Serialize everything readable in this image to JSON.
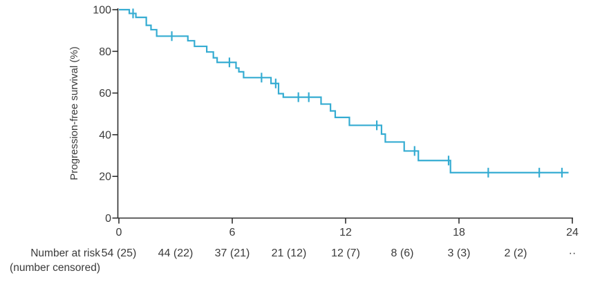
{
  "figure": {
    "y_axis_label": "Progression-free survival (%)",
    "risk_label_line1": "Number at risk",
    "risk_label_line2": "(number censored)"
  },
  "colors": {
    "curve": "#35acd2",
    "axis": "#2e2e2e",
    "text": "#3a3a3a"
  },
  "chart_data": {
    "type": "line",
    "subtype": "kaplan-meier-step",
    "title": "",
    "xlabel": "",
    "ylabel": "Progression-free survival (%)",
    "xlim": [
      0,
      24
    ],
    "ylim": [
      0,
      100
    ],
    "x_ticks": [
      0,
      6,
      12,
      18,
      24
    ],
    "y_ticks": [
      0,
      20,
      40,
      60,
      80,
      100
    ],
    "grid": false,
    "legend_position": "none",
    "series": [
      {
        "name": "Progression-free survival",
        "steps": [
          [
            0,
            100
          ],
          [
            0.55,
            98.2
          ],
          [
            0.9,
            96.3
          ],
          [
            1.45,
            92.5
          ],
          [
            1.7,
            90.4
          ],
          [
            2.0,
            87.3
          ],
          [
            3.65,
            85.1
          ],
          [
            4.0,
            82.4
          ],
          [
            4.65,
            79.7
          ],
          [
            5.0,
            76.9
          ],
          [
            5.2,
            74.7
          ],
          [
            6.2,
            72.0
          ],
          [
            6.35,
            70.2
          ],
          [
            6.6,
            67.4
          ],
          [
            8.05,
            64.6
          ],
          [
            8.45,
            59.7
          ],
          [
            8.7,
            58.0
          ],
          [
            10.7,
            54.7
          ],
          [
            11.2,
            51.4
          ],
          [
            11.45,
            48.3
          ],
          [
            12.2,
            44.5
          ],
          [
            13.9,
            40.3
          ],
          [
            14.1,
            36.5
          ],
          [
            15.1,
            32.2
          ],
          [
            15.85,
            27.6
          ],
          [
            17.55,
            21.8
          ]
        ],
        "end_time": 23.8,
        "censor_marks": [
          [
            0.75,
            98.2
          ],
          [
            2.8,
            87.3
          ],
          [
            5.85,
            74.7
          ],
          [
            7.55,
            67.4
          ],
          [
            8.3,
            64.6
          ],
          [
            9.5,
            58.0
          ],
          [
            10.05,
            58.0
          ],
          [
            13.65,
            44.5
          ],
          [
            15.65,
            32.2
          ],
          [
            17.45,
            27.6
          ],
          [
            19.55,
            21.8
          ],
          [
            22.25,
            21.8
          ],
          [
            23.45,
            21.8
          ]
        ]
      }
    ],
    "number_at_risk": {
      "times": [
        0,
        3,
        6,
        9,
        12,
        15,
        18,
        21,
        24
      ],
      "labels": [
        "54 (25)",
        "44 (22)",
        "37 (21)",
        "21 (12)",
        "12 (7)",
        "8 (6)",
        "3 (3)",
        "2 (2)",
        "··"
      ]
    }
  }
}
